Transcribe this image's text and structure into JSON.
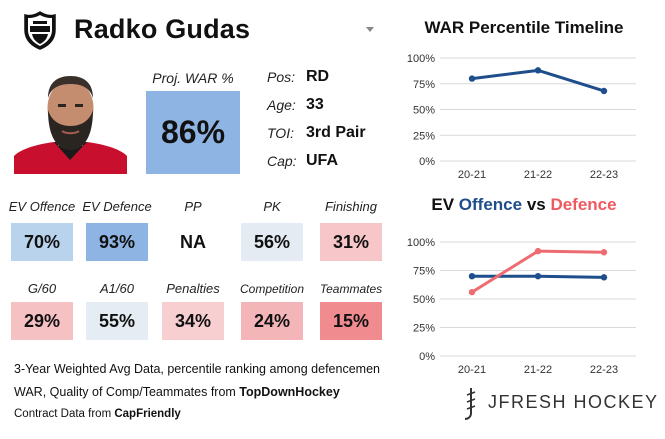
{
  "player": {
    "name": "Radko Gudas"
  },
  "icons": {
    "league_logo": "nhl-shield-icon",
    "dropdown": "caret-down-icon",
    "brand_logo": "stick-icon"
  },
  "war": {
    "label": "Proj. WAR %",
    "value": "86%",
    "color": "#8db4e2"
  },
  "info": [
    {
      "label": "Pos:",
      "value": "RD"
    },
    {
      "label": "Age:",
      "value": "33"
    },
    {
      "label": "TOI:",
      "value": "3rd Pair"
    },
    {
      "label": "Cap:",
      "value": "UFA"
    }
  ],
  "stats_row1": [
    {
      "label": "EV Offence",
      "value": "70%",
      "color": "#bad3ec"
    },
    {
      "label": "EV Defence",
      "value": "93%",
      "color": "#8db4e2"
    },
    {
      "label": "PP",
      "value": "NA",
      "color": "#ffffff"
    },
    {
      "label": "PK",
      "value": "56%",
      "color": "#e4ebf3"
    },
    {
      "label": "Finishing",
      "value": "31%",
      "color": "#f6c6c8"
    }
  ],
  "stats_row2": [
    {
      "label": "G/60",
      "value": "29%",
      "color": "#f6c1c3"
    },
    {
      "label": "A1/60",
      "value": "55%",
      "color": "#e6ecf3"
    },
    {
      "label": "Penalties",
      "value": "34%",
      "color": "#f8cfd1"
    },
    {
      "label": "Competition",
      "value": "24%",
      "color": "#f4b5b8"
    },
    {
      "label": "Teammates",
      "value": "15%",
      "color": "#f08c90"
    }
  ],
  "footnotes": {
    "line1": "3-Year Weighted Avg Data, percentile ranking among defencemen",
    "line2_prefix": "WAR, Quality of Comp/Teammates from ",
    "line2_source": "TopDownHockey",
    "line3_prefix": "Contract Data from ",
    "line3_source": "CapFriendly"
  },
  "brand": {
    "text": "JFRESH HOCKEY"
  },
  "chart_data": [
    {
      "type": "line",
      "title": "WAR Percentile Timeline",
      "categories": [
        "20-21",
        "21-22",
        "22-23"
      ],
      "series": [
        {
          "values": [
            80,
            88,
            68
          ],
          "color": "#1f4e8c"
        }
      ],
      "ylim": [
        0,
        100
      ],
      "yticks": [
        0,
        25,
        50,
        75,
        100
      ],
      "ytick_labels": [
        "0%",
        "25%",
        "50%",
        "75%",
        "100%"
      ],
      "grid": true
    },
    {
      "type": "line",
      "title_parts": [
        {
          "text": "EV ",
          "color": "#111111"
        },
        {
          "text": "Offence",
          "color": "#1f4e8c"
        },
        {
          "text": " vs ",
          "color": "#111111"
        },
        {
          "text": "Defence",
          "color": "#ee5a62"
        }
      ],
      "categories": [
        "20-21",
        "21-22",
        "22-23"
      ],
      "series": [
        {
          "name": "Offence",
          "values": [
            70,
            70,
            69
          ],
          "color": "#1f4e8c"
        },
        {
          "name": "Defence",
          "values": [
            56,
            92,
            91
          ],
          "color": "#ee6b72"
        }
      ],
      "ylim": [
        0,
        100
      ],
      "yticks": [
        0,
        25,
        50,
        75,
        100
      ],
      "ytick_labels": [
        "0%",
        "25%",
        "50%",
        "75%",
        "100%"
      ],
      "grid": true
    }
  ]
}
